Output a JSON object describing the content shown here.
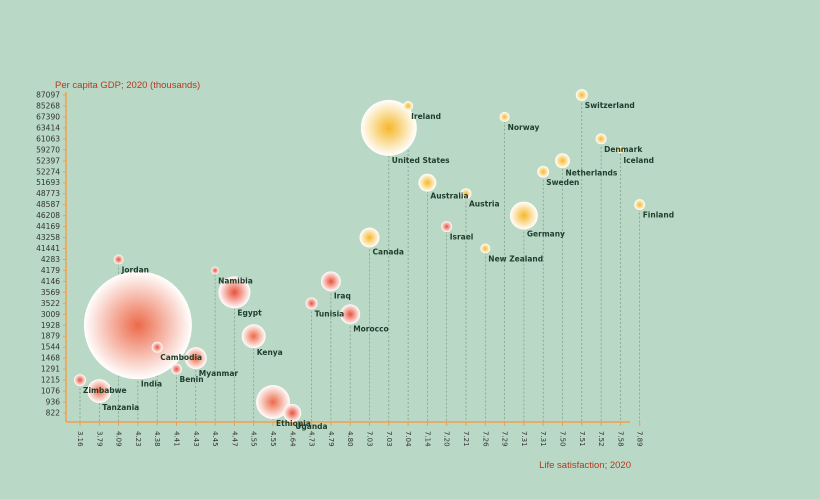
{
  "chart_data": {
    "type": "scatter",
    "title": "",
    "xlabel": "Life satisfaction; 2020",
    "ylabel": "Per capita GDP; 2020 (thousands)",
    "x_ticks": [
      "3.16",
      "3.79",
      "4.09",
      "4.23",
      "4.38",
      "4.41",
      "4.43",
      "4.45",
      "4.47",
      "4.55",
      "4.55",
      "4.64",
      "4.73",
      "4.79",
      "4.80",
      "7.03",
      "7.03",
      "7.04",
      "7.14",
      "7.20",
      "7.21",
      "7.26",
      "7.29",
      "7.31",
      "7.31",
      "7.50",
      "7.51",
      "7.52",
      "7.58",
      "7.89"
    ],
    "y_ticks": [
      "822",
      "936",
      "1076",
      "1215",
      "1291",
      "1468",
      "1544",
      "1879",
      "1928",
      "3009",
      "3522",
      "3569",
      "4146",
      "4179",
      "4283",
      "41441",
      "43258",
      "44169",
      "46208",
      "48587",
      "48773",
      "51693",
      "52274",
      "52397",
      "59270",
      "61063",
      "63414",
      "67390",
      "85268",
      "87097"
    ],
    "points": [
      {
        "name": "Zimbabwe",
        "x": 3.16,
        "y": 1215,
        "r": 4,
        "color": "#e8503a"
      },
      {
        "name": "Tanzania",
        "x": 3.79,
        "y": 1076,
        "r": 10,
        "color": "#ec6a4a"
      },
      {
        "name": "Jordan",
        "x": 4.09,
        "y": 4283,
        "r": 3,
        "color": "#e8503a"
      },
      {
        "name": "India",
        "x": 4.23,
        "y": 1928,
        "r": 52,
        "color": "#ec6a4a"
      },
      {
        "name": "Cambodia",
        "x": 4.38,
        "y": 1544,
        "r": 3.5,
        "color": "#e8503a"
      },
      {
        "name": "Benin",
        "x": 4.41,
        "y": 1291,
        "r": 3.5,
        "color": "#e8503a"
      },
      {
        "name": "Myanmar",
        "x": 4.43,
        "y": 1468,
        "r": 9,
        "color": "#ec6a4a"
      },
      {
        "name": "Namibia",
        "x": 4.45,
        "y": 4179,
        "r": 2,
        "color": "#e8503a"
      },
      {
        "name": "Egypt",
        "x": 4.47,
        "y": 3569,
        "r": 14,
        "color": "#e8503a"
      },
      {
        "name": "Kenya",
        "x": 4.55,
        "y": 1879,
        "r": 10,
        "color": "#ec6a4a"
      },
      {
        "name": "Ethiopia",
        "x": 4.55,
        "y": 936,
        "r": 15,
        "color": "#ec6a4a"
      },
      {
        "name": "Uganda",
        "x": 4.64,
        "y": 822,
        "r": 7,
        "color": "#e8503a"
      },
      {
        "name": "Tunisia",
        "x": 4.73,
        "y": 3522,
        "r": 4,
        "color": "#e8503a"
      },
      {
        "name": "Iraq",
        "x": 4.79,
        "y": 4146,
        "r": 8,
        "color": "#e8503a"
      },
      {
        "name": "Morocco",
        "x": 4.8,
        "y": 3009,
        "r": 8,
        "color": "#e8503a"
      },
      {
        "name": "Canada",
        "x": 7.03,
        "y": 43258,
        "r": 8,
        "color": "#f5b82a"
      },
      {
        "name": "United States",
        "x": 7.03,
        "y": 63414,
        "r": 26,
        "color": "#f5b82a"
      },
      {
        "name": "Ireland",
        "x": 7.04,
        "y": 85268,
        "r": 3,
        "color": "#f5b82a"
      },
      {
        "name": "Australia",
        "x": 7.14,
        "y": 51693,
        "r": 7,
        "color": "#f5b82a"
      },
      {
        "name": "Israel",
        "x": 7.2,
        "y": 44169,
        "r": 3.5,
        "color": "#e8503a"
      },
      {
        "name": "Austria",
        "x": 7.21,
        "y": 48773,
        "r": 3.5,
        "color": "#f5b82a"
      },
      {
        "name": "New Zealand",
        "x": 7.26,
        "y": 41441,
        "r": 3,
        "color": "#f5b82a"
      },
      {
        "name": "Norway",
        "x": 7.29,
        "y": 67390,
        "r": 3,
        "color": "#f5b82a"
      },
      {
        "name": "Germany",
        "x": 7.31,
        "y": 46208,
        "r": 12,
        "color": "#f5b82a"
      },
      {
        "name": "Sweden",
        "x": 7.31,
        "y": 52274,
        "r": 4,
        "color": "#f5b82a"
      },
      {
        "name": "Netherlands",
        "x": 7.5,
        "y": 52397,
        "r": 5.5,
        "color": "#f5b82a"
      },
      {
        "name": "Switzerland",
        "x": 7.51,
        "y": 87097,
        "r": 4,
        "color": "#f5b82a"
      },
      {
        "name": "Denmark",
        "x": 7.52,
        "y": 61063,
        "r": 3.5,
        "color": "#f5b82a"
      },
      {
        "name": "Iceland",
        "x": 7.58,
        "y": 59270,
        "r": 1.5,
        "color": "#f5b82a"
      },
      {
        "name": "Finland",
        "x": 7.89,
        "y": 48587,
        "r": 3.5,
        "color": "#f5b82a"
      }
    ],
    "axis_color": "#f0a04b",
    "background": "#b9d8c5"
  }
}
